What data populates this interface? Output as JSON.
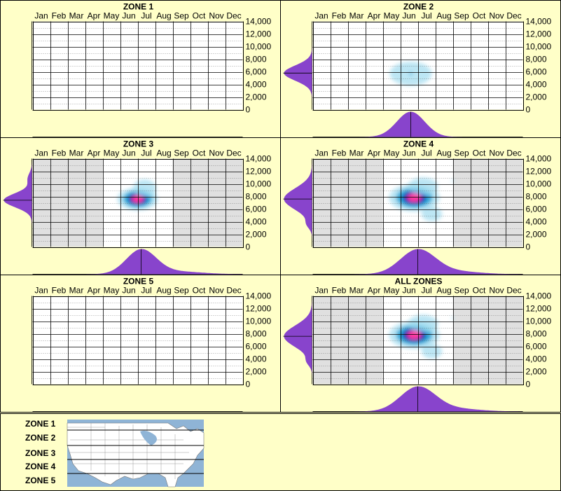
{
  "months": [
    "Jan",
    "Feb",
    "Mar",
    "Apr",
    "May",
    "Jun",
    "Jul",
    "Aug",
    "Sep",
    "Oct",
    "Nov",
    "Dec"
  ],
  "y_ticks": [
    "14,000",
    "12,000",
    "10,000",
    "8,000",
    "6,000",
    "4,000",
    "2,000",
    "0"
  ],
  "colors": {
    "background": "#ffffc8",
    "shade": "#e0e0e0",
    "marginal": "#8844cc",
    "heat_low": "#9fdcef",
    "heat_mid": "#1a9fd4",
    "heat_high": "#0a1ab0",
    "heat_peak": "#ff3aa0"
  },
  "chart_data": [
    {
      "type": "heatmap",
      "title": "ZONE 1",
      "xlabel": "",
      "ylabel": "",
      "x_categories": [
        "Jan",
        "Feb",
        "Mar",
        "Apr",
        "May",
        "Jun",
        "Jul",
        "Aug",
        "Sep",
        "Oct",
        "Nov",
        "Dec"
      ],
      "ylim": [
        0,
        14000
      ],
      "grid": true,
      "shaded_months": [],
      "hotspots": [],
      "marginal_y": [],
      "marginal_x": []
    },
    {
      "type": "heatmap",
      "title": "ZONE 2",
      "xlabel": "",
      "ylabel": "",
      "x_categories": [
        "Jan",
        "Feb",
        "Mar",
        "Apr",
        "May",
        "Jun",
        "Jul",
        "Aug",
        "Sep",
        "Oct",
        "Nov",
        "Dec"
      ],
      "ylim": [
        0,
        14000
      ],
      "grid": true,
      "shaded_months": [],
      "hotspots": [
        {
          "month": 6.1,
          "elevation": 5700,
          "sx": 0.8,
          "sy": 1200,
          "intensity": 0.4
        }
      ],
      "marginal_y": [
        {
          "mu": 5800,
          "sigma": 1200,
          "w": 1
        }
      ],
      "marginal_x": [
        {
          "mu": 6.1,
          "sigma": 0.8,
          "w": 1
        }
      ]
    },
    {
      "type": "heatmap",
      "title": "ZONE 3",
      "xlabel": "",
      "ylabel": "",
      "x_categories": [
        "Jan",
        "Feb",
        "Mar",
        "Apr",
        "May",
        "Jun",
        "Jul",
        "Aug",
        "Sep",
        "Oct",
        "Nov",
        "Dec"
      ],
      "ylim": [
        0,
        14000
      ],
      "grid": true,
      "shaded_months": [
        "Jan",
        "Feb",
        "Mar",
        "Apr",
        "Sep",
        "Oct",
        "Nov",
        "Dec"
      ],
      "hotspots": [
        {
          "month": 6.5,
          "elevation": 7600,
          "sx": 0.55,
          "sy": 800,
          "intensity": 1.0
        },
        {
          "month": 6.9,
          "elevation": 9300,
          "sx": 0.45,
          "sy": 900,
          "intensity": 0.35
        },
        {
          "month": 7.8,
          "elevation": 10800,
          "sx": 0.3,
          "sy": 400,
          "intensity": 0.12
        }
      ],
      "marginal_y": [
        {
          "mu": 7400,
          "sigma": 1100,
          "w": 1
        },
        {
          "mu": 10800,
          "sigma": 900,
          "w": 0.15
        }
      ],
      "marginal_x": [
        {
          "mu": 6.7,
          "sigma": 0.85,
          "w": 1
        },
        {
          "mu": 8.6,
          "sigma": 1.5,
          "w": 0.12
        }
      ]
    },
    {
      "type": "heatmap",
      "title": "ZONE 4",
      "xlabel": "",
      "ylabel": "",
      "x_categories": [
        "Jan",
        "Feb",
        "Mar",
        "Apr",
        "May",
        "Jun",
        "Jul",
        "Aug",
        "Sep",
        "Oct",
        "Nov",
        "Dec"
      ],
      "ylim": [
        0,
        14000
      ],
      "grid": true,
      "shaded_months": [
        "Jan",
        "Feb",
        "Mar",
        "Apr",
        "Sep",
        "Oct",
        "Nov",
        "Dec"
      ],
      "hotspots": [
        {
          "month": 6.3,
          "elevation": 7800,
          "sx": 0.7,
          "sy": 1000,
          "intensity": 1.0
        },
        {
          "month": 6.8,
          "elevation": 9600,
          "sx": 0.6,
          "sy": 900,
          "intensity": 0.35
        },
        {
          "month": 7.3,
          "elevation": 5200,
          "sx": 0.5,
          "sy": 900,
          "intensity": 0.25
        },
        {
          "month": 8.5,
          "elevation": 10500,
          "sx": 0.45,
          "sy": 600,
          "intensity": 0.15
        }
      ],
      "marginal_y": [
        {
          "mu": 7600,
          "sigma": 1700,
          "w": 1
        },
        {
          "mu": 3600,
          "sigma": 700,
          "w": 0.15
        }
      ],
      "marginal_x": [
        {
          "mu": 6.5,
          "sigma": 1.0,
          "w": 1
        },
        {
          "mu": 8.6,
          "sigma": 1.4,
          "w": 0.12
        }
      ]
    },
    {
      "type": "heatmap",
      "title": "ZONE 5",
      "xlabel": "",
      "ylabel": "",
      "x_categories": [
        "Jan",
        "Feb",
        "Mar",
        "Apr",
        "May",
        "Jun",
        "Jul",
        "Aug",
        "Sep",
        "Oct",
        "Nov",
        "Dec"
      ],
      "ylim": [
        0,
        14000
      ],
      "grid": true,
      "shaded_months": [],
      "hotspots": [],
      "marginal_y": [],
      "marginal_x": []
    },
    {
      "type": "heatmap",
      "title": "ALL ZONES",
      "xlabel": "",
      "ylabel": "",
      "x_categories": [
        "Jan",
        "Feb",
        "Mar",
        "Apr",
        "May",
        "Jun",
        "Jul",
        "Aug",
        "Sep",
        "Oct",
        "Nov",
        "Dec"
      ],
      "ylim": [
        0,
        14000
      ],
      "grid": true,
      "shaded_months": [
        "Jan",
        "Feb",
        "Mar",
        "Apr",
        "Sep",
        "Oct",
        "Nov",
        "Dec"
      ],
      "hotspots": [
        {
          "month": 6.3,
          "elevation": 7800,
          "sx": 0.7,
          "sy": 1000,
          "intensity": 1.0
        },
        {
          "month": 6.8,
          "elevation": 9600,
          "sx": 0.6,
          "sy": 900,
          "intensity": 0.35
        },
        {
          "month": 7.3,
          "elevation": 5200,
          "sx": 0.5,
          "sy": 900,
          "intensity": 0.25
        },
        {
          "month": 8.5,
          "elevation": 10500,
          "sx": 0.45,
          "sy": 600,
          "intensity": 0.15
        }
      ],
      "marginal_y": [
        {
          "mu": 7600,
          "sigma": 1700,
          "w": 1
        },
        {
          "mu": 3600,
          "sigma": 700,
          "w": 0.15
        }
      ],
      "marginal_x": [
        {
          "mu": 6.5,
          "sigma": 1.0,
          "w": 1
        },
        {
          "mu": 8.6,
          "sigma": 1.4,
          "w": 0.12
        }
      ]
    }
  ],
  "legend": {
    "zones": [
      "ZONE 1",
      "ZONE 2",
      "ZONE 3",
      "ZONE 4",
      "ZONE 5"
    ]
  }
}
